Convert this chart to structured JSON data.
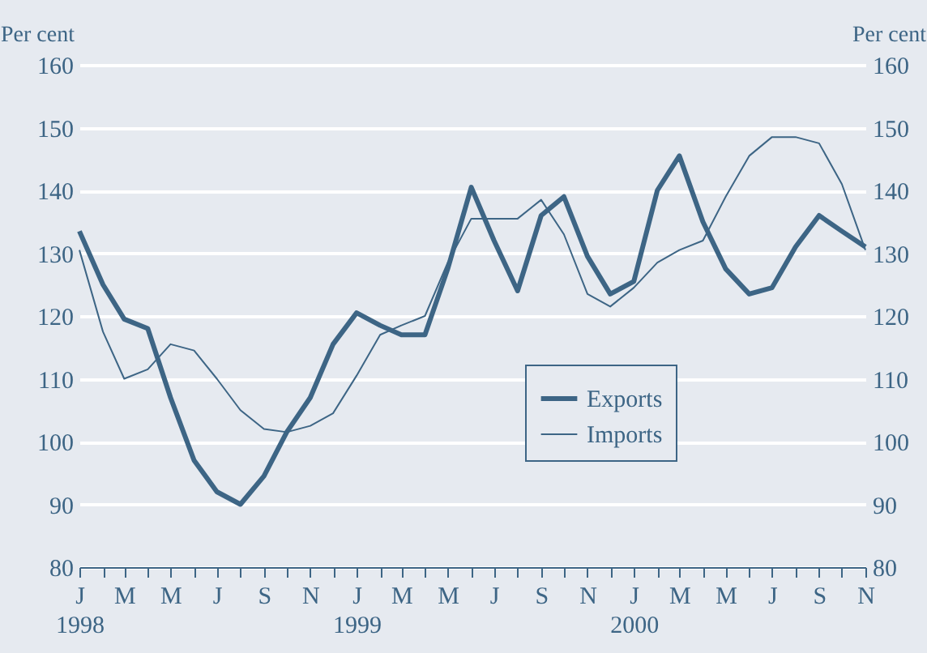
{
  "chart_data": {
    "type": "line",
    "ylabel": "Per cent",
    "y2label": "Per cent",
    "x": [
      "1998-01",
      "1998-02",
      "1998-03",
      "1998-04",
      "1998-05",
      "1998-06",
      "1998-07",
      "1998-08",
      "1998-09",
      "1998-10",
      "1998-11",
      "1998-12",
      "1999-01",
      "1999-02",
      "1999-03",
      "1999-04",
      "1999-05",
      "1999-06",
      "1999-07",
      "1999-08",
      "1999-09",
      "1999-10",
      "1999-11",
      "1999-12",
      "2000-01",
      "2000-02",
      "2000-03",
      "2000-04",
      "2000-05",
      "2000-06",
      "2000-07",
      "2000-08",
      "2000-09",
      "2000-10",
      "2000-11"
    ],
    "series": [
      {
        "name": "Exports",
        "color": "#3d6585",
        "values": [
          133.5,
          125,
          119.5,
          118,
          107,
          97,
          92,
          90,
          94.5,
          101.5,
          107,
          115.5,
          120.5,
          118.5,
          117,
          117,
          127.5,
          140.5,
          132,
          124,
          136,
          139,
          129.5,
          123.5,
          125.5,
          140,
          145.5,
          135,
          127.5,
          123.5,
          124.5,
          131,
          136,
          133.5,
          131
        ]
      },
      {
        "name": "Imports",
        "color": "#3d6585",
        "axis": "y2",
        "values": [
          130.5,
          117.5,
          110,
          111.5,
          115.5,
          114.5,
          110,
          105,
          102,
          101.5,
          102.5,
          104.5,
          110.5,
          117,
          118.5,
          120,
          128.5,
          135.5,
          135.5,
          135.5,
          138.5,
          133,
          123.5,
          121.5,
          124.5,
          128.5,
          130.5,
          132,
          139,
          145.5,
          148.5,
          148.5,
          147.5,
          141,
          130.5
        ]
      }
    ],
    "xlim": [
      "1998-01",
      "2000-11"
    ],
    "xticks": [
      {
        "value": "1998-01",
        "label": "J\n1998"
      },
      {
        "value": "1998-02",
        "label": null
      },
      {
        "value": "1998-03",
        "label": "M"
      },
      {
        "value": "1998-04",
        "label": null
      },
      {
        "value": "1998-05",
        "label": "M"
      },
      {
        "value": "1998-06",
        "label": null
      },
      {
        "value": "1998-07",
        "label": "J"
      },
      {
        "value": "1998-08",
        "label": null
      },
      {
        "value": "1998-09",
        "label": "S"
      },
      {
        "value": "1998-10",
        "label": null
      },
      {
        "value": "1998-11",
        "label": "N"
      },
      {
        "value": "1998-12",
        "label": null
      },
      {
        "value": "1999-01",
        "label": "J\n1999"
      },
      {
        "value": "1999-02",
        "label": null
      },
      {
        "value": "1999-03",
        "label": "M"
      },
      {
        "value": "1999-04",
        "label": null
      },
      {
        "value": "1999-05",
        "label": "M"
      },
      {
        "value": "1999-06",
        "label": null
      },
      {
        "value": "1999-07",
        "label": "J"
      },
      {
        "value": "1999-08",
        "label": null
      },
      {
        "value": "1999-09",
        "label": "S"
      },
      {
        "value": "1999-10",
        "label": null
      },
      {
        "value": "1999-11",
        "label": "N"
      },
      {
        "value": "1999-12",
        "label": null
      },
      {
        "value": "2000-01",
        "label": "J\n2000"
      },
      {
        "value": "2000-02",
        "label": null
      },
      {
        "value": "2000-03",
        "label": "M"
      },
      {
        "value": "2000-04",
        "label": null
      },
      {
        "value": "2000-05",
        "label": "M"
      },
      {
        "value": "2000-06",
        "label": null
      },
      {
        "value": "2000-07",
        "label": "J"
      },
      {
        "value": "2000-08",
        "label": null
      },
      {
        "value": "2000-09",
        "label": "S"
      },
      {
        "value": "2000-10",
        "label": null
      },
      {
        "value": "2000-11",
        "label": "N"
      }
    ],
    "ylim": [
      80,
      160
    ],
    "yticks": [
      80,
      90,
      100,
      110,
      120,
      130,
      140,
      150,
      160
    ],
    "y2lim": [
      80,
      160
    ],
    "y2ticks": [
      80,
      90,
      100,
      110,
      120,
      130,
      140,
      150,
      160
    ],
    "grid": "y",
    "legend": "right",
    "marker": "none",
    "line_style": "solid"
  }
}
